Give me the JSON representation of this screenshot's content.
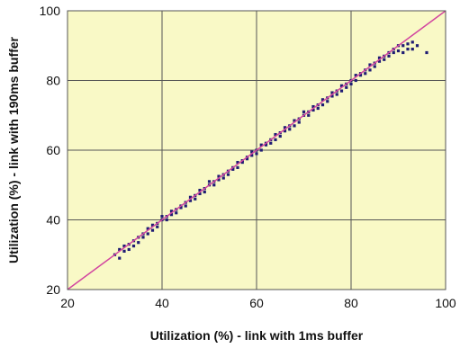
{
  "chart_data": {
    "type": "scatter",
    "title": "",
    "xlabel": "Utilization (%) - link with 1ms buffer",
    "ylabel": "Utilization (%) - link with 190ms buffer",
    "xlim": [
      20,
      100
    ],
    "ylim": [
      20,
      100
    ],
    "x_ticks": [
      "20",
      "40",
      "60",
      "80",
      "100"
    ],
    "y_ticks": [
      "20",
      "40",
      "60",
      "80",
      "100"
    ],
    "grid": true,
    "legend": "none",
    "reference_line": {
      "type": "identity",
      "from": [
        20,
        20
      ],
      "to": [
        100,
        100
      ]
    },
    "series": [
      {
        "points": [
          [
            30,
            30
          ],
          [
            31,
            31.5
          ],
          [
            31,
            29
          ],
          [
            32,
            31
          ],
          [
            32,
            32.5
          ],
          [
            33,
            33
          ],
          [
            33,
            31.5
          ],
          [
            34,
            34
          ],
          [
            34,
            32.5
          ],
          [
            35,
            35
          ],
          [
            35,
            33.5
          ],
          [
            36,
            36
          ],
          [
            36,
            35
          ],
          [
            37,
            37.5
          ],
          [
            37,
            36
          ],
          [
            38,
            38.5
          ],
          [
            38,
            37
          ],
          [
            39,
            39
          ],
          [
            39,
            38
          ],
          [
            40,
            40
          ],
          [
            40,
            41
          ],
          [
            41,
            41
          ],
          [
            41,
            40
          ],
          [
            42,
            42.5
          ],
          [
            42,
            41.5
          ],
          [
            43,
            43
          ],
          [
            43,
            42
          ],
          [
            44,
            44
          ],
          [
            44,
            43.5
          ],
          [
            45,
            45
          ],
          [
            45,
            44
          ],
          [
            46,
            46.5
          ],
          [
            46,
            45.5
          ],
          [
            47,
            47
          ],
          [
            47,
            46
          ],
          [
            48,
            48.5
          ],
          [
            48,
            47.5
          ],
          [
            49,
            49
          ],
          [
            49,
            48
          ],
          [
            50,
            50
          ],
          [
            50,
            51
          ],
          [
            51,
            51
          ],
          [
            51,
            50
          ],
          [
            52,
            52.5
          ],
          [
            52,
            51.5
          ],
          [
            53,
            53
          ],
          [
            53,
            52
          ],
          [
            54,
            54
          ],
          [
            54,
            53
          ],
          [
            55,
            55
          ],
          [
            55,
            54.5
          ],
          [
            56,
            56.5
          ],
          [
            56,
            55
          ],
          [
            57,
            57
          ],
          [
            57,
            56.5
          ],
          [
            58,
            58
          ],
          [
            58,
            57.5
          ],
          [
            59,
            59.5
          ],
          [
            59,
            58.5
          ],
          [
            60,
            60
          ],
          [
            60,
            59
          ],
          [
            61,
            61.5
          ],
          [
            61,
            60
          ],
          [
            62,
            62
          ],
          [
            62,
            61.5
          ],
          [
            63,
            63
          ],
          [
            63,
            62
          ],
          [
            64,
            64.5
          ],
          [
            64,
            63
          ],
          [
            65,
            65
          ],
          [
            65,
            64
          ],
          [
            66,
            66.5
          ],
          [
            66,
            65.5
          ],
          [
            67,
            67
          ],
          [
            67,
            66
          ],
          [
            68,
            68.5
          ],
          [
            68,
            67
          ],
          [
            69,
            69
          ],
          [
            69,
            68
          ],
          [
            70,
            70
          ],
          [
            70,
            71
          ],
          [
            71,
            71
          ],
          [
            71,
            70
          ],
          [
            72,
            72.5
          ],
          [
            72,
            71.5
          ],
          [
            73,
            73
          ],
          [
            73,
            72
          ],
          [
            74,
            74.5
          ],
          [
            74,
            73
          ],
          [
            75,
            75
          ],
          [
            75,
            74
          ],
          [
            76,
            76.5
          ],
          [
            76,
            75.5
          ],
          [
            77,
            77
          ],
          [
            77,
            76
          ],
          [
            78,
            78.5
          ],
          [
            78,
            77
          ],
          [
            79,
            79
          ],
          [
            79,
            78
          ],
          [
            80,
            80
          ],
          [
            80,
            79
          ],
          [
            81,
            81.5
          ],
          [
            81,
            80
          ],
          [
            82,
            82
          ],
          [
            82,
            81.5
          ],
          [
            83,
            83
          ],
          [
            83,
            82
          ],
          [
            84,
            84.5
          ],
          [
            84,
            83
          ],
          [
            85,
            85
          ],
          [
            85,
            84
          ],
          [
            86,
            86.5
          ],
          [
            86,
            85.5
          ],
          [
            87,
            87
          ],
          [
            87,
            86
          ],
          [
            88,
            88
          ],
          [
            88,
            87
          ],
          [
            89,
            89
          ],
          [
            89,
            88
          ],
          [
            90,
            90
          ],
          [
            90,
            88.5
          ],
          [
            91,
            90
          ],
          [
            91,
            88
          ],
          [
            92,
            90.5
          ],
          [
            92,
            89
          ],
          [
            93,
            91
          ],
          [
            93,
            89
          ],
          [
            94,
            90
          ],
          [
            96,
            88
          ]
        ]
      }
    ],
    "colors": {
      "plot_background": "#F9F9C6",
      "points": "#1F1C73",
      "identity_line": "#D246A0",
      "grid": "#555555"
    }
  }
}
